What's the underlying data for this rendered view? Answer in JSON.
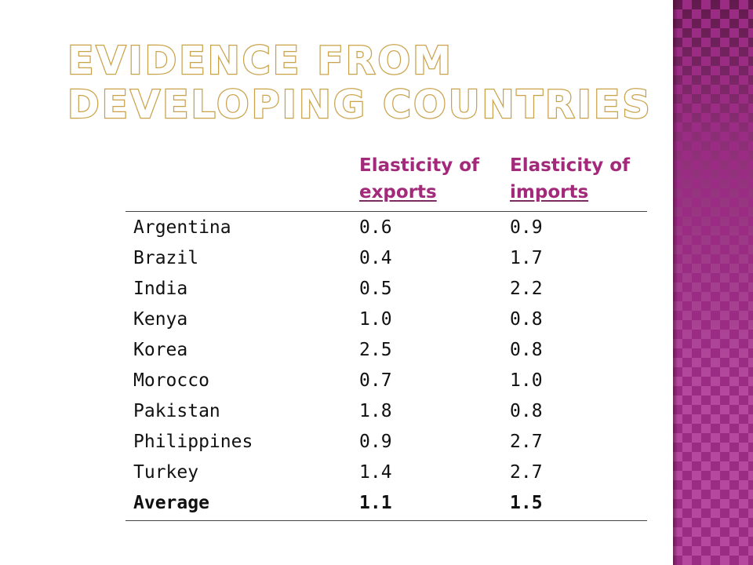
{
  "title": {
    "line1": "Evidence from",
    "line2": "developing countries"
  },
  "table": {
    "header": {
      "col2": [
        "Elasticity of",
        "exports"
      ],
      "col3": [
        "Elasticity of",
        "imports"
      ]
    },
    "rows": [
      {
        "country": "Argentina",
        "exports": "0.6",
        "imports": "0.9"
      },
      {
        "country": "Brazil",
        "exports": "0.4",
        "imports": "1.7"
      },
      {
        "country": "India",
        "exports": "0.5",
        "imports": "2.2"
      },
      {
        "country": "Kenya",
        "exports": "1.0",
        "imports": "0.8"
      },
      {
        "country": "Korea",
        "exports": "2.5",
        "imports": "0.8"
      },
      {
        "country": "Morocco",
        "exports": "0.7",
        "imports": "1.0"
      },
      {
        "country": "Pakistan",
        "exports": "1.8",
        "imports": "0.8"
      },
      {
        "country": "Philippines",
        "exports": "0.9",
        "imports": "2.7"
      },
      {
        "country": "Turkey",
        "exports": "1.4",
        "imports": "2.7"
      }
    ],
    "average": {
      "country": "Average",
      "exports": "1.1",
      "imports": "1.5"
    }
  },
  "colors": {
    "header_text": "#a3297a",
    "title_outline": "#c9a24a",
    "band": "#b6499f"
  }
}
